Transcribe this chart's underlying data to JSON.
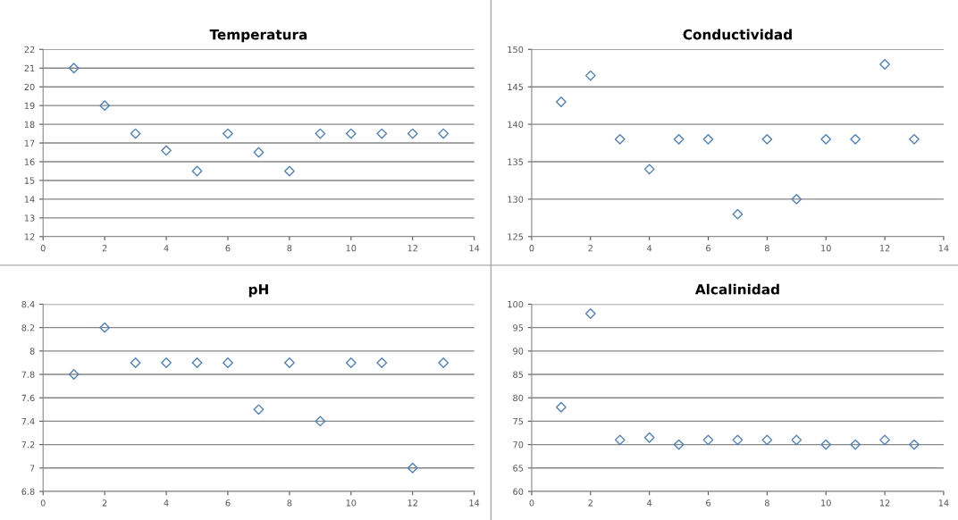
{
  "chart_data": [
    {
      "type": "scatter",
      "title": "Temperatura",
      "x": [
        1,
        2,
        3,
        4,
        5,
        6,
        7,
        8,
        9,
        10,
        11,
        12,
        13
      ],
      "series": [
        {
          "color": "#4f81bd",
          "values": [
            21,
            19,
            17.5,
            16.6,
            15.5,
            17.5,
            16.5,
            15.5,
            17.5,
            17.5,
            17.5,
            17.5,
            17.5
          ]
        }
      ],
      "xlim": [
        0,
        14
      ],
      "xticks": [
        0,
        2,
        4,
        6,
        8,
        10,
        12,
        14
      ],
      "ylim": [
        12,
        22
      ],
      "yticks": [
        12,
        13,
        14,
        15,
        16,
        17,
        18,
        19,
        20,
        21,
        22
      ],
      "grid": "y",
      "marker": "diamond"
    },
    {
      "type": "scatter",
      "title": "Conductividad",
      "x": [
        1,
        2,
        3,
        4,
        5,
        6,
        7,
        8,
        9,
        10,
        11,
        12,
        13
      ],
      "series": [
        {
          "color": "#4f81bd",
          "values": [
            143,
            146.5,
            138,
            134,
            138,
            138,
            128,
            138,
            130,
            138,
            138,
            148,
            138
          ]
        }
      ],
      "xlim": [
        0,
        14
      ],
      "xticks": [
        0,
        2,
        4,
        6,
        8,
        10,
        12,
        14
      ],
      "ylim": [
        125,
        150
      ],
      "yticks": [
        125,
        130,
        135,
        140,
        145,
        150
      ],
      "grid": "y",
      "marker": "diamond"
    },
    {
      "type": "scatter",
      "title": "pH",
      "x": [
        1,
        2,
        3,
        4,
        5,
        6,
        7,
        8,
        9,
        10,
        11,
        12,
        13
      ],
      "series": [
        {
          "color": "#4f81bd",
          "values": [
            7.8,
            8.2,
            7.9,
            7.9,
            7.9,
            7.9,
            7.5,
            7.9,
            7.4,
            7.9,
            7.9,
            7.0,
            7.9
          ]
        }
      ],
      "xlim": [
        0,
        14
      ],
      "xticks": [
        0,
        2,
        4,
        6,
        8,
        10,
        12,
        14
      ],
      "ylim": [
        6.8,
        8.4
      ],
      "yticks": [
        {
          "value": 6.8,
          "label": "6.8"
        },
        {
          "value": 7,
          "label": "7"
        },
        {
          "value": 7.2,
          "label": "7.2"
        },
        {
          "value": 7.4,
          "label": "7.4"
        },
        {
          "value": 7.6,
          "label": "7.6"
        },
        {
          "value": 7.8,
          "label": "7.8"
        },
        {
          "value": 8,
          "label": "8"
        },
        {
          "value": 8.2,
          "label": "8.2"
        },
        {
          "value": 8.4,
          "label": "8.4"
        }
      ],
      "grid": "y",
      "marker": "diamond"
    },
    {
      "type": "scatter",
      "title": "Alcalinidad",
      "x": [
        1,
        2,
        3,
        4,
        5,
        6,
        7,
        8,
        9,
        10,
        11,
        12,
        13
      ],
      "series": [
        {
          "color": "#4f81bd",
          "values": [
            78,
            98,
            71,
            71.5,
            70,
            71,
            71,
            71,
            71,
            70,
            70,
            71,
            70
          ]
        }
      ],
      "xlim": [
        0,
        14
      ],
      "xticks": [
        0,
        2,
        4,
        6,
        8,
        10,
        12,
        14
      ],
      "ylim": [
        60,
        100
      ],
      "yticks": [
        60,
        65,
        70,
        75,
        80,
        85,
        90,
        95,
        100
      ],
      "grid": "y",
      "marker": "diamond"
    }
  ]
}
